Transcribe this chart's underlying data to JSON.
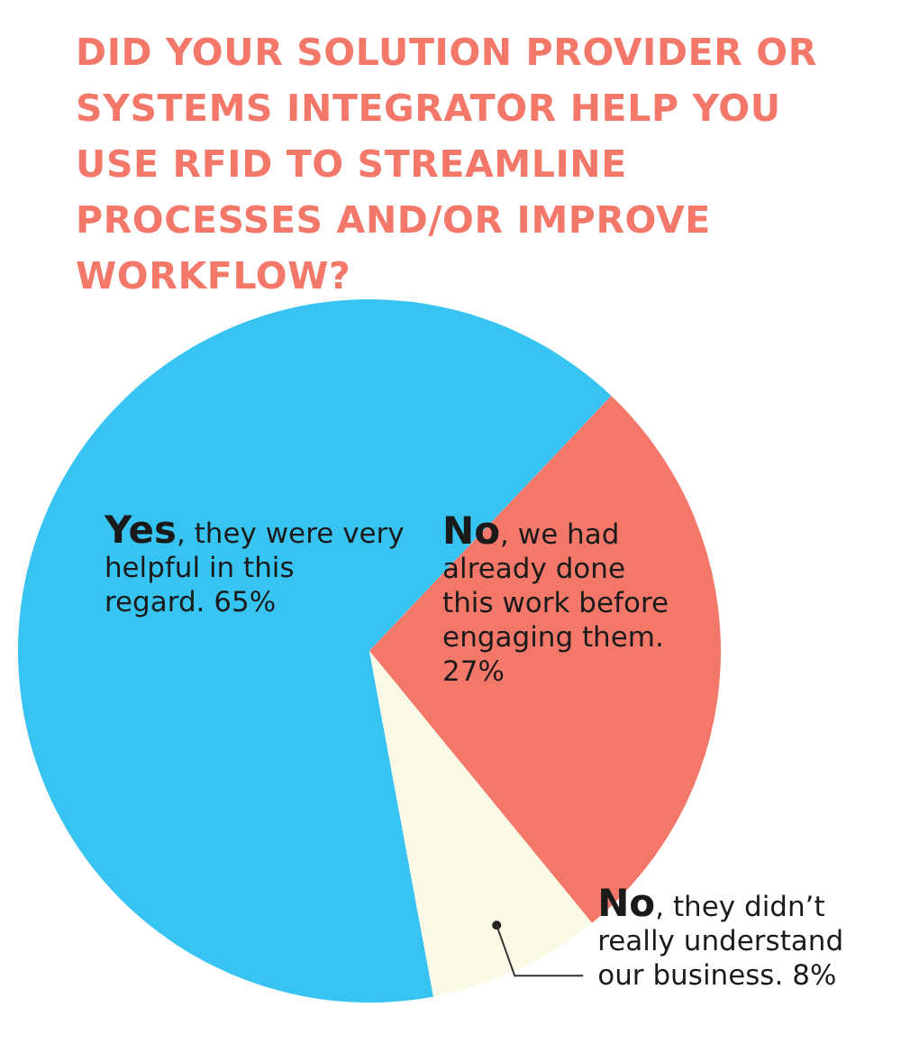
{
  "chart_data": {
    "type": "pie",
    "title": "DID YOUR SOLUTION PROVIDER OR SYSTEMS INTEGRATOR HELP YOU USE RFID TO STREAMLINE PROCESSES AND/OR IMPROVE WORKFLOW?",
    "categories": [
      "Yes, they were very helpful in this regard.",
      "No, we had already done this work before engaging them.",
      "No, they didn’t really understand our business."
    ],
    "values": [
      65,
      27,
      8
    ],
    "colors": [
      "#38c4f2",
      "#f4786a",
      "#fafae6"
    ],
    "value_labels": [
      "65%",
      "27%",
      "8%"
    ]
  }
}
